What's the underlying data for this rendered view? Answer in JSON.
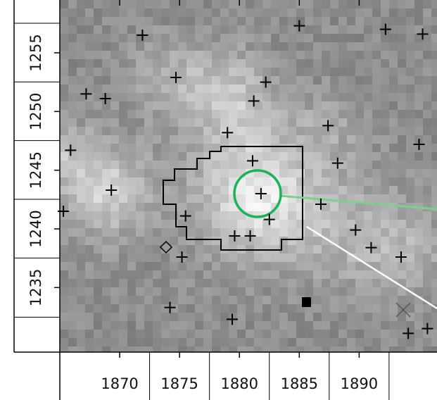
{
  "chart_data": {
    "type": "scatter",
    "x": [
      1871.9,
      1885.0,
      1892.2,
      1895.3,
      1874.7,
      1882.2,
      1867.2,
      1868.8,
      1881.2,
      1879.0,
      1887.4,
      1865.9,
      1895.0,
      1881.1,
      1888.2,
      1869.3,
      1881.8,
      1886.8,
      1865.3,
      1875.5,
      1882.5,
      1889.7,
      1879.6,
      1880.9,
      1891.0,
      1875.2,
      1893.5,
      1874.2,
      1879.4,
      1894.1,
      1895.7
    ],
    "values": [
      1256.5,
      1257.3,
      1257.0,
      1256.6,
      1252.9,
      1252.5,
      1251.5,
      1251.1,
      1250.9,
      1248.2,
      1248.8,
      1246.7,
      1247.2,
      1245.8,
      1245.6,
      1243.3,
      1243.0,
      1242.1,
      1241.5,
      1241.1,
      1240.8,
      1239.9,
      1239.4,
      1239.4,
      1238.4,
      1237.6,
      1237.6,
      1233.3,
      1232.3,
      1231.1,
      1231.5
    ],
    "color": "#000000",
    "xlim": [
      1865,
      1896.5
    ],
    "xticks": [
      1870,
      1875,
      1880,
      1885,
      1890
    ],
    "ylim": [
      1229.5,
      1259.5
    ],
    "yticks": [
      1235,
      1240,
      1245,
      1250,
      1255
    ]
  }
}
